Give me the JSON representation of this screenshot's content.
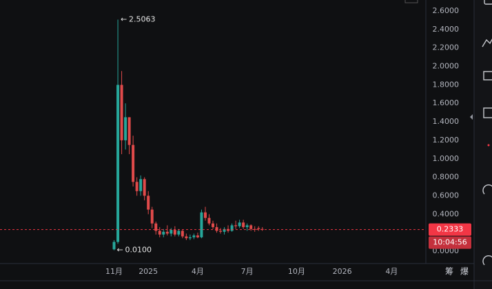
{
  "chart_data": {
    "type": "candlestick",
    "up_color": "#26a69a",
    "down_color": "#e04a4a",
    "xlim": [
      0,
      112
    ],
    "ylim": [
      -0.1117,
      2.719
    ],
    "xticks": [
      {
        "value": 30,
        "label": "11月"
      },
      {
        "value": 39,
        "label": "2025"
      },
      {
        "value": 52,
        "label": "4月"
      },
      {
        "value": 65,
        "label": "7月"
      },
      {
        "value": 78,
        "label": "10月"
      },
      {
        "value": 90,
        "label": "2026"
      },
      {
        "value": 103,
        "label": "4月"
      }
    ],
    "yticks": [
      {
        "value": 0,
        "label": "0.0000"
      },
      {
        "value": 0.4,
        "label": "0.4000"
      },
      {
        "value": 0.6,
        "label": "0.6000"
      },
      {
        "value": 0.8,
        "label": "0.8000"
      },
      {
        "value": 1,
        "label": "1.0000"
      },
      {
        "value": 1.2,
        "label": "1.2000"
      },
      {
        "value": 1.4,
        "label": "1.4000"
      },
      {
        "value": 1.6,
        "label": "1.6000"
      },
      {
        "value": 1.8,
        "label": "1.8000"
      },
      {
        "value": 2,
        "label": "2.0000"
      },
      {
        "value": 2.2,
        "label": "2.2000"
      },
      {
        "value": 2.4,
        "label": "2.4000"
      },
      {
        "value": 2.6,
        "label": "2.6000"
      }
    ],
    "x": [
      30,
      31,
      32,
      33,
      34,
      35,
      36,
      37,
      38,
      39,
      40,
      41,
      42,
      43,
      44,
      45,
      46,
      47,
      48,
      49,
      50,
      51,
      52,
      53,
      54,
      55,
      56,
      57,
      58,
      59,
      60,
      61,
      62,
      63,
      64,
      65,
      66,
      67,
      68,
      69
    ],
    "open": [
      0.02,
      0.1,
      1.8,
      1.2,
      1.45,
      1.15,
      0.75,
      0.65,
      0.78,
      0.6,
      0.45,
      0.3,
      0.22,
      0.18,
      0.21,
      0.19,
      0.23,
      0.18,
      0.22,
      0.16,
      0.14,
      0.15,
      0.17,
      0.15,
      0.42,
      0.36,
      0.3,
      0.26,
      0.22,
      0.21,
      0.24,
      0.22,
      0.28,
      0.27,
      0.31,
      0.26,
      0.28,
      0.24,
      0.25,
      0.24
    ],
    "high": [
      0.12,
      2.5063,
      1.95,
      1.6,
      1.45,
      1.25,
      0.8,
      0.82,
      0.8,
      0.65,
      0.48,
      0.32,
      0.26,
      0.24,
      0.28,
      0.25,
      0.27,
      0.24,
      0.23,
      0.19,
      0.18,
      0.19,
      0.2,
      0.45,
      0.48,
      0.4,
      0.33,
      0.3,
      0.25,
      0.26,
      0.28,
      0.3,
      0.33,
      0.34,
      0.34,
      0.3,
      0.29,
      0.27,
      0.27,
      0.26
    ],
    "low": [
      0.01,
      0.08,
      1.05,
      1.1,
      1.05,
      0.7,
      0.6,
      0.6,
      0.55,
      0.4,
      0.25,
      0.18,
      0.15,
      0.15,
      0.17,
      0.16,
      0.16,
      0.16,
      0.14,
      0.12,
      0.12,
      0.13,
      0.14,
      0.14,
      0.33,
      0.28,
      0.24,
      0.2,
      0.19,
      0.18,
      0.2,
      0.21,
      0.24,
      0.25,
      0.24,
      0.22,
      0.22,
      0.21,
      0.22,
      0.22
    ],
    "close": [
      0.1,
      1.8,
      1.2,
      1.45,
      1.15,
      0.75,
      0.65,
      0.78,
      0.6,
      0.45,
      0.3,
      0.22,
      0.18,
      0.21,
      0.19,
      0.23,
      0.18,
      0.22,
      0.16,
      0.14,
      0.15,
      0.17,
      0.15,
      0.42,
      0.36,
      0.3,
      0.26,
      0.22,
      0.21,
      0.24,
      0.22,
      0.28,
      0.27,
      0.31,
      0.26,
      0.28,
      0.24,
      0.2333,
      0.24,
      0.2333
    ],
    "annotations": [
      {
        "x": 31,
        "value": 2.5063,
        "label": "2.5063"
      },
      {
        "x": 30,
        "value": 0.01,
        "label": "0.0100"
      }
    ],
    "last_price": {
      "value": 0.2333,
      "label": "0.2333",
      "color": "#f23645"
    },
    "countdown": "10:04:56",
    "toolbar": [
      "筹",
      "爆"
    ]
  }
}
